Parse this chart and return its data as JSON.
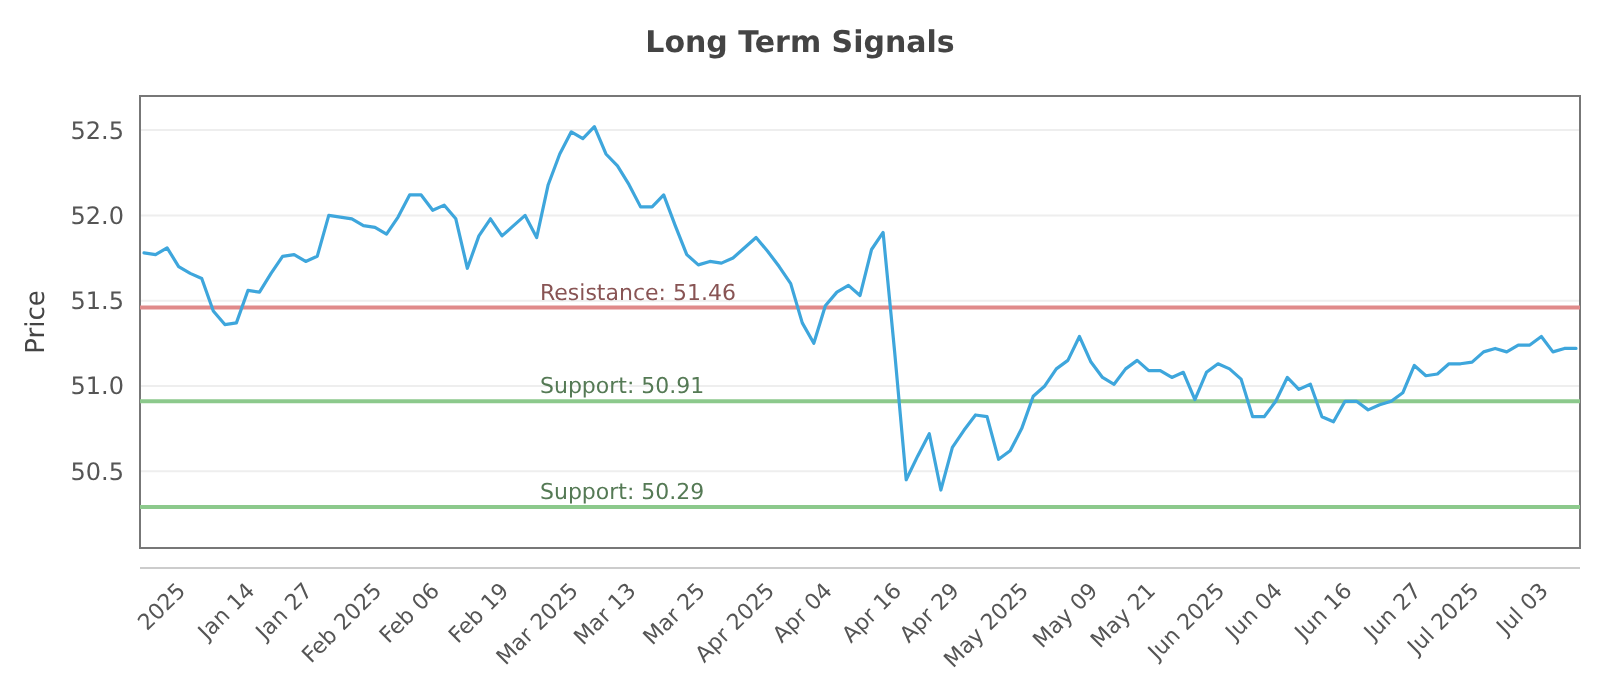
{
  "chart_data": {
    "type": "line",
    "title": "Long Term Signals",
    "ylabel": "Price",
    "categories": [
      null,
      null,
      null,
      "2025",
      null,
      null,
      null,
      null,
      null,
      "Jan 14",
      null,
      null,
      null,
      null,
      "Jan 27",
      null,
      null,
      null,
      null,
      null,
      "Feb 2025",
      null,
      null,
      null,
      null,
      "Feb 06",
      null,
      null,
      null,
      null,
      null,
      "Feb 19",
      null,
      null,
      null,
      null,
      null,
      "Mar 2025",
      null,
      null,
      null,
      null,
      "Mar 13",
      null,
      null,
      null,
      null,
      null,
      "Mar 25",
      null,
      null,
      null,
      null,
      null,
      "Apr 2025",
      null,
      null,
      null,
      null,
      "Apr 04",
      null,
      null,
      null,
      null,
      null,
      "Apr 16",
      null,
      null,
      null,
      null,
      "Apr 29",
      null,
      null,
      null,
      null,
      null,
      "May 2025",
      null,
      null,
      null,
      null,
      null,
      "May 09",
      null,
      null,
      null,
      null,
      "May 21",
      null,
      null,
      null,
      null,
      null,
      "Jun 2025",
      null,
      null,
      null,
      null,
      "Jun 04",
      null,
      null,
      null,
      null,
      null,
      "Jun 16",
      null,
      null,
      null,
      null,
      null,
      "Jun 27",
      null,
      null,
      null,
      null,
      "Jul 2025",
      null,
      null,
      null,
      null,
      null,
      "Jul 03",
      null,
      null,
      null
    ],
    "series": [
      {
        "color": "#3ea6dc",
        "values": [
          51.78,
          51.77,
          51.81,
          51.7,
          51.66,
          51.63,
          51.44,
          51.36,
          51.37,
          51.56,
          51.55,
          51.66,
          51.76,
          51.77,
          51.73,
          51.76,
          52.0,
          51.99,
          51.98,
          51.94,
          51.93,
          51.89,
          51.99,
          52.12,
          52.12,
          52.03,
          52.06,
          51.98,
          51.69,
          51.88,
          51.98,
          51.88,
          51.94,
          52.0,
          51.87,
          52.18,
          52.36,
          52.49,
          52.45,
          52.52,
          52.36,
          52.29,
          52.18,
          52.05,
          52.05,
          52.12,
          51.94,
          51.77,
          51.71,
          51.73,
          51.72,
          51.75,
          51.81,
          51.87,
          51.79,
          51.7,
          51.6,
          51.37,
          51.25,
          51.47,
          51.55,
          51.59,
          51.53,
          51.8,
          51.9,
          51.2,
          50.45,
          50.59,
          50.72,
          50.39,
          50.64,
          50.74,
          50.83,
          50.82,
          50.57,
          50.62,
          50.75,
          50.94,
          51.0,
          51.1,
          51.15,
          51.29,
          51.14,
          51.05,
          51.01,
          51.1,
          51.15,
          51.09,
          51.09,
          51.05,
          51.08,
          50.92,
          51.08,
          51.13,
          51.1,
          51.04,
          50.82,
          50.82,
          50.91,
          51.05,
          50.98,
          51.01,
          50.82,
          50.79,
          50.91,
          50.91,
          50.86,
          50.89,
          50.91,
          50.96,
          51.12,
          51.06,
          51.07,
          51.13,
          51.13,
          51.14,
          51.2,
          51.22,
          51.2,
          51.24,
          51.24,
          51.29,
          51.2,
          51.22,
          51.22
        ]
      }
    ],
    "ylim": [
      50.05,
      52.7
    ],
    "yticks": [
      {
        "value": 50.5,
        "label": "50.5"
      },
      {
        "value": 51,
        "label": "51.0"
      },
      {
        "value": 51.5,
        "label": "51.5"
      },
      {
        "value": 52,
        "label": "52.0"
      },
      {
        "value": 52.5,
        "label": "52.5"
      }
    ],
    "grid": "y",
    "marker": "none",
    "line_style": "solid",
    "ref_lines": [
      {
        "axis": "y",
        "value": 51.46,
        "label": "Resistance: 51.46",
        "color": "#e08a8a"
      },
      {
        "axis": "y",
        "value": 50.91,
        "label": "Support: 50.91",
        "color": "#8cc98c"
      },
      {
        "axis": "y",
        "value": 50.29,
        "label": "Support: 50.29",
        "color": "#8cc98c"
      }
    ]
  }
}
